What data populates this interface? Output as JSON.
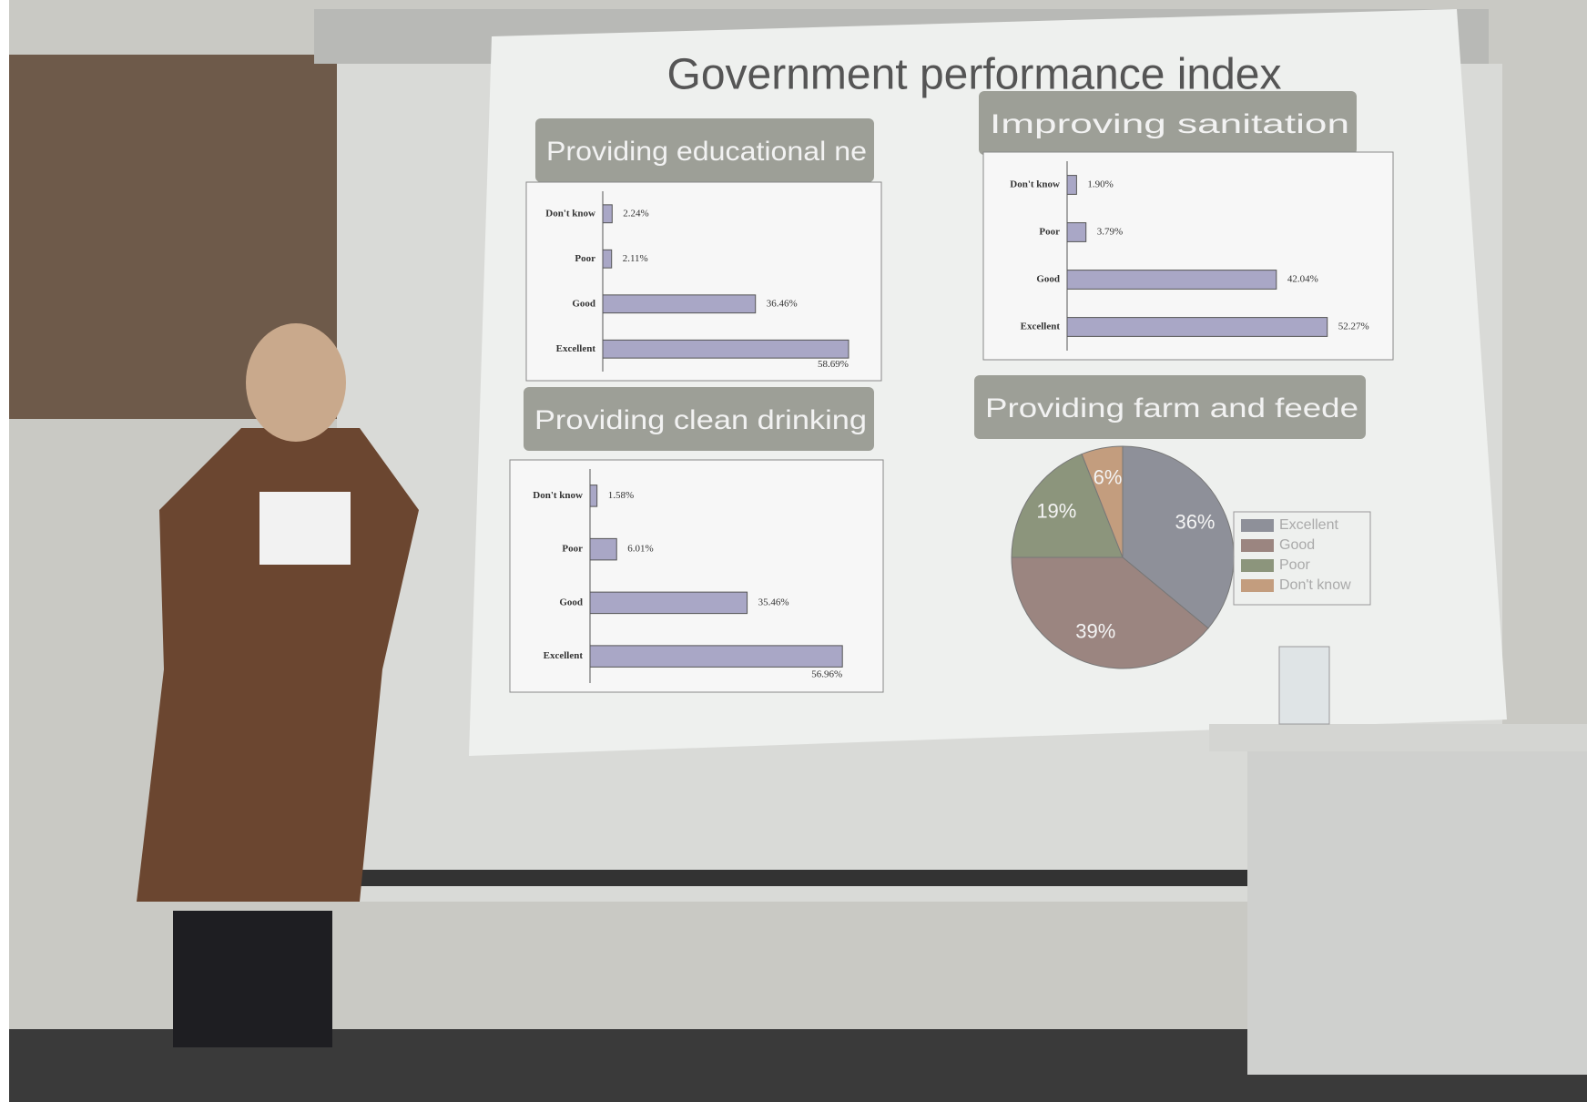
{
  "title": "Government performance index",
  "chart_data": [
    {
      "type": "bar",
      "title": "Providing educational ne",
      "categories": [
        "Don't know",
        "Poor",
        "Good",
        "Excellent"
      ],
      "values": [
        2.24,
        2.11,
        36.46,
        58.69
      ],
      "value_labels": [
        "2.24%",
        "2.11%",
        "36.46%",
        "58.69%"
      ],
      "color": "#a9a7c6"
    },
    {
      "type": "bar",
      "title": "Improving sanitation",
      "categories": [
        "Don't know",
        "Poor",
        "Good",
        "Excellent"
      ],
      "values": [
        1.9,
        3.79,
        42.04,
        52.27
      ],
      "value_labels": [
        "1.90%",
        "3.79%",
        "42.04%",
        "52.27%"
      ],
      "color": "#a9a7c6"
    },
    {
      "type": "bar",
      "title": "Providing clean drinking",
      "categories": [
        "Don't know",
        "Poor",
        "Good",
        "Excellent"
      ],
      "values": [
        1.58,
        6.01,
        35.46,
        56.96
      ],
      "value_labels": [
        "1.58%",
        "6.01%",
        "35.46%",
        "56.96%"
      ],
      "color": "#a9a7c6"
    },
    {
      "type": "pie",
      "title": "Providing farm and feede",
      "categories": [
        "Excellent",
        "Good",
        "Poor",
        "Don't know"
      ],
      "values": [
        36,
        39,
        19,
        6
      ],
      "value_labels": [
        "36%",
        "39%",
        "19%",
        "6%"
      ],
      "colors": [
        "#8e9099",
        "#9b8580",
        "#8c957c",
        "#c39d7e"
      ]
    }
  ]
}
